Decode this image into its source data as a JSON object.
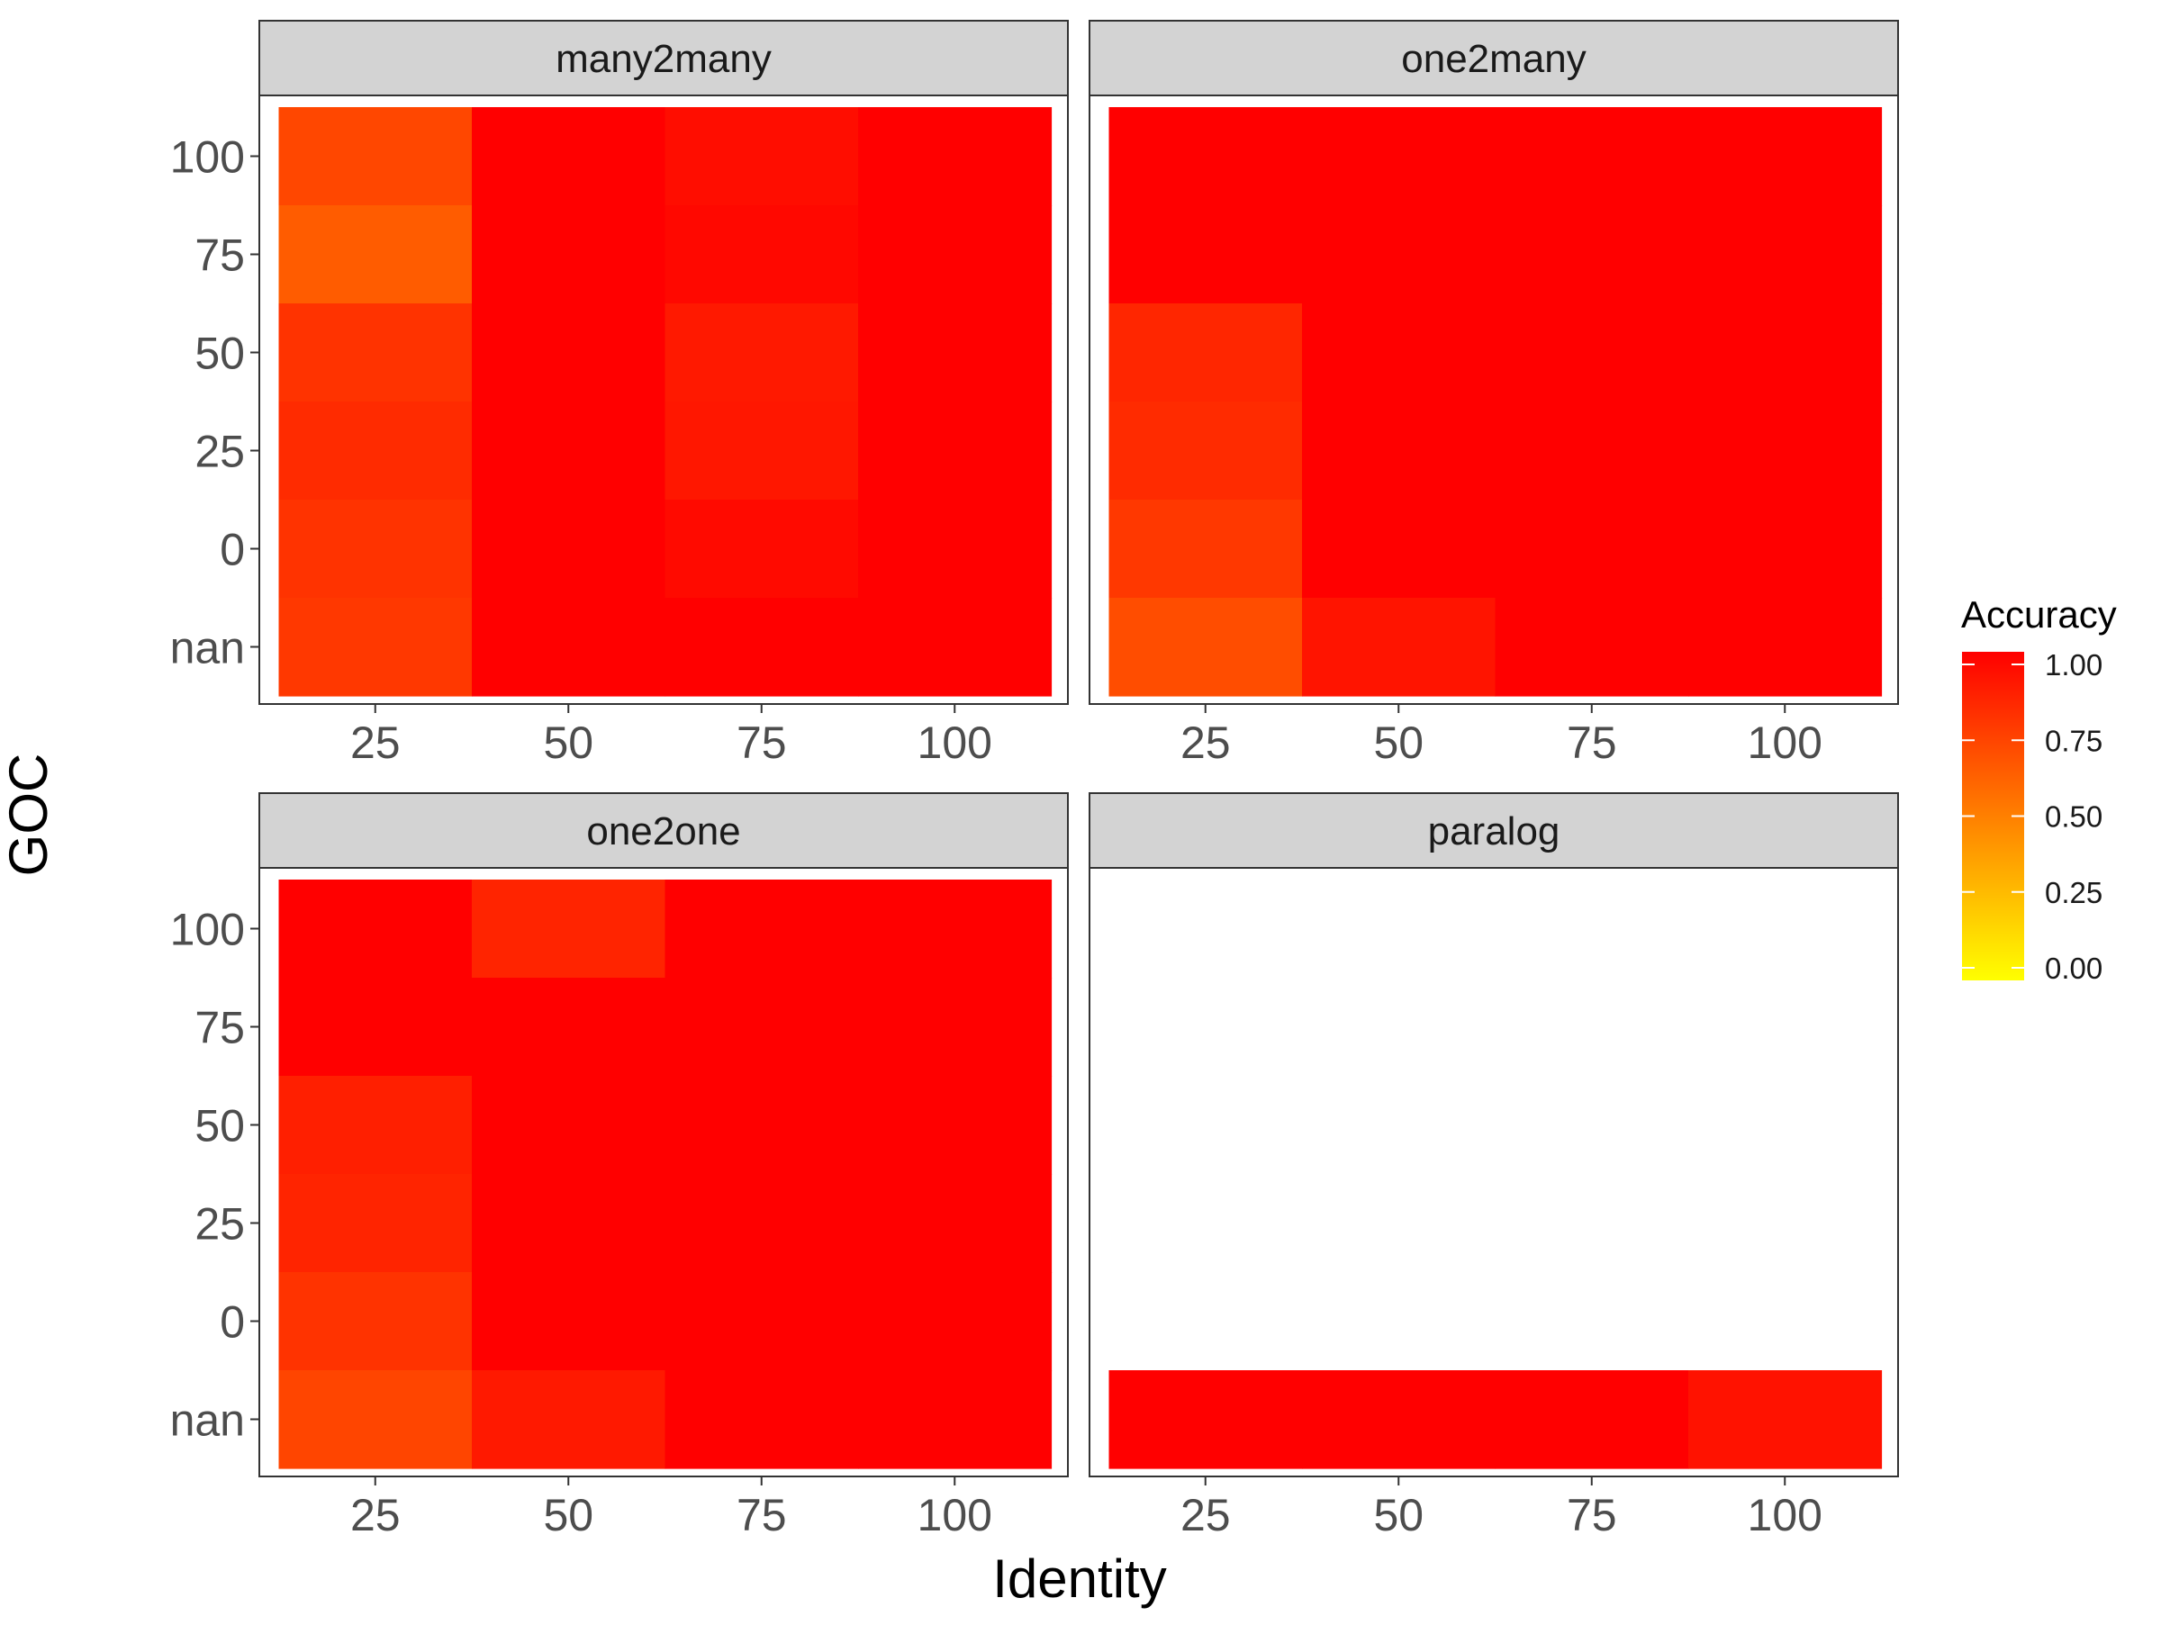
{
  "chart_data": {
    "type": "heatmap",
    "xlabel": "Identity",
    "ylabel": "GOC",
    "x_categories": [
      "25",
      "50",
      "75",
      "100"
    ],
    "y_categories": [
      "nan",
      "0",
      "25",
      "50",
      "75",
      "100"
    ],
    "x_ticks": [
      "25",
      "50",
      "75",
      "100"
    ],
    "y_ticks": [
      "100",
      "75",
      "50",
      "25",
      "0",
      "nan"
    ],
    "legend": {
      "title": "Accuracy",
      "placement": "right",
      "range": [
        0,
        1
      ],
      "ticks": [
        "0.00",
        "0.25",
        "0.50",
        "0.75",
        "1.00"
      ],
      "low_color": "#FFFF00",
      "high_color": "#FF0000"
    },
    "facets": [
      {
        "name": "many2many",
        "cells": [
          {
            "x": "25",
            "y": "100",
            "value": 0.72
          },
          {
            "x": "25",
            "y": "75",
            "value": 0.64
          },
          {
            "x": "25",
            "y": "50",
            "value": 0.8
          },
          {
            "x": "25",
            "y": "25",
            "value": 0.83
          },
          {
            "x": "25",
            "y": "0",
            "value": 0.8
          },
          {
            "x": "25",
            "y": "nan",
            "value": 0.78
          },
          {
            "x": "50",
            "y": "100",
            "value": 1.0
          },
          {
            "x": "50",
            "y": "75",
            "value": 1.0
          },
          {
            "x": "50",
            "y": "50",
            "value": 1.0
          },
          {
            "x": "50",
            "y": "25",
            "value": 1.0
          },
          {
            "x": "50",
            "y": "0",
            "value": 1.0
          },
          {
            "x": "50",
            "y": "nan",
            "value": 1.0
          },
          {
            "x": "75",
            "y": "100",
            "value": 0.95
          },
          {
            "x": "75",
            "y": "75",
            "value": 0.97
          },
          {
            "x": "75",
            "y": "50",
            "value": 0.9
          },
          {
            "x": "75",
            "y": "25",
            "value": 0.91
          },
          {
            "x": "75",
            "y": "0",
            "value": 0.96
          },
          {
            "x": "75",
            "y": "nan",
            "value": 1.0
          },
          {
            "x": "100",
            "y": "100",
            "value": 1.0
          },
          {
            "x": "100",
            "y": "75",
            "value": 1.0
          },
          {
            "x": "100",
            "y": "50",
            "value": 1.0
          },
          {
            "x": "100",
            "y": "25",
            "value": 1.0
          },
          {
            "x": "100",
            "y": "0",
            "value": 1.0
          },
          {
            "x": "100",
            "y": "nan",
            "value": 1.0
          }
        ]
      },
      {
        "name": "one2many",
        "cells": [
          {
            "x": "25",
            "y": "100",
            "value": 1.0
          },
          {
            "x": "25",
            "y": "75",
            "value": 1.0
          },
          {
            "x": "25",
            "y": "50",
            "value": 0.85
          },
          {
            "x": "25",
            "y": "25",
            "value": 0.83
          },
          {
            "x": "25",
            "y": "0",
            "value": 0.78
          },
          {
            "x": "25",
            "y": "nan",
            "value": 0.7
          },
          {
            "x": "50",
            "y": "100",
            "value": 1.0
          },
          {
            "x": "50",
            "y": "75",
            "value": 1.0
          },
          {
            "x": "50",
            "y": "50",
            "value": 1.0
          },
          {
            "x": "50",
            "y": "25",
            "value": 1.0
          },
          {
            "x": "50",
            "y": "0",
            "value": 1.0
          },
          {
            "x": "50",
            "y": "nan",
            "value": 0.92
          },
          {
            "x": "75",
            "y": "100",
            "value": 1.0
          },
          {
            "x": "75",
            "y": "75",
            "value": 1.0
          },
          {
            "x": "75",
            "y": "50",
            "value": 1.0
          },
          {
            "x": "75",
            "y": "25",
            "value": 1.0
          },
          {
            "x": "75",
            "y": "0",
            "value": 1.0
          },
          {
            "x": "75",
            "y": "nan",
            "value": 1.0
          },
          {
            "x": "100",
            "y": "100",
            "value": 1.0
          },
          {
            "x": "100",
            "y": "75",
            "value": 1.0
          },
          {
            "x": "100",
            "y": "50",
            "value": 1.0
          },
          {
            "x": "100",
            "y": "25",
            "value": 1.0
          },
          {
            "x": "100",
            "y": "0",
            "value": 1.0
          },
          {
            "x": "100",
            "y": "nan",
            "value": 1.0
          }
        ]
      },
      {
        "name": "one2one",
        "cells": [
          {
            "x": "25",
            "y": "100",
            "value": 1.0
          },
          {
            "x": "25",
            "y": "75",
            "value": 1.0
          },
          {
            "x": "25",
            "y": "50",
            "value": 0.88
          },
          {
            "x": "25",
            "y": "25",
            "value": 0.86
          },
          {
            "x": "25",
            "y": "0",
            "value": 0.8
          },
          {
            "x": "25",
            "y": "nan",
            "value": 0.73
          },
          {
            "x": "50",
            "y": "100",
            "value": 0.86
          },
          {
            "x": "50",
            "y": "75",
            "value": 1.0
          },
          {
            "x": "50",
            "y": "50",
            "value": 1.0
          },
          {
            "x": "50",
            "y": "25",
            "value": 1.0
          },
          {
            "x": "50",
            "y": "0",
            "value": 1.0
          },
          {
            "x": "50",
            "y": "nan",
            "value": 0.9
          },
          {
            "x": "75",
            "y": "100",
            "value": 1.0
          },
          {
            "x": "75",
            "y": "75",
            "value": 1.0
          },
          {
            "x": "75",
            "y": "50",
            "value": 1.0
          },
          {
            "x": "75",
            "y": "25",
            "value": 1.0
          },
          {
            "x": "75",
            "y": "0",
            "value": 1.0
          },
          {
            "x": "75",
            "y": "nan",
            "value": 1.0
          },
          {
            "x": "100",
            "y": "100",
            "value": 1.0
          },
          {
            "x": "100",
            "y": "75",
            "value": 1.0
          },
          {
            "x": "100",
            "y": "50",
            "value": 1.0
          },
          {
            "x": "100",
            "y": "25",
            "value": 1.0
          },
          {
            "x": "100",
            "y": "0",
            "value": 1.0
          },
          {
            "x": "100",
            "y": "nan",
            "value": 1.0
          }
        ]
      },
      {
        "name": "paralog",
        "cells": [
          {
            "x": "25",
            "y": "nan",
            "value": 1.0
          },
          {
            "x": "50",
            "y": "nan",
            "value": 1.0
          },
          {
            "x": "75",
            "y": "nan",
            "value": 1.0
          },
          {
            "x": "100",
            "y": "nan",
            "value": 0.93
          }
        ]
      }
    ]
  }
}
